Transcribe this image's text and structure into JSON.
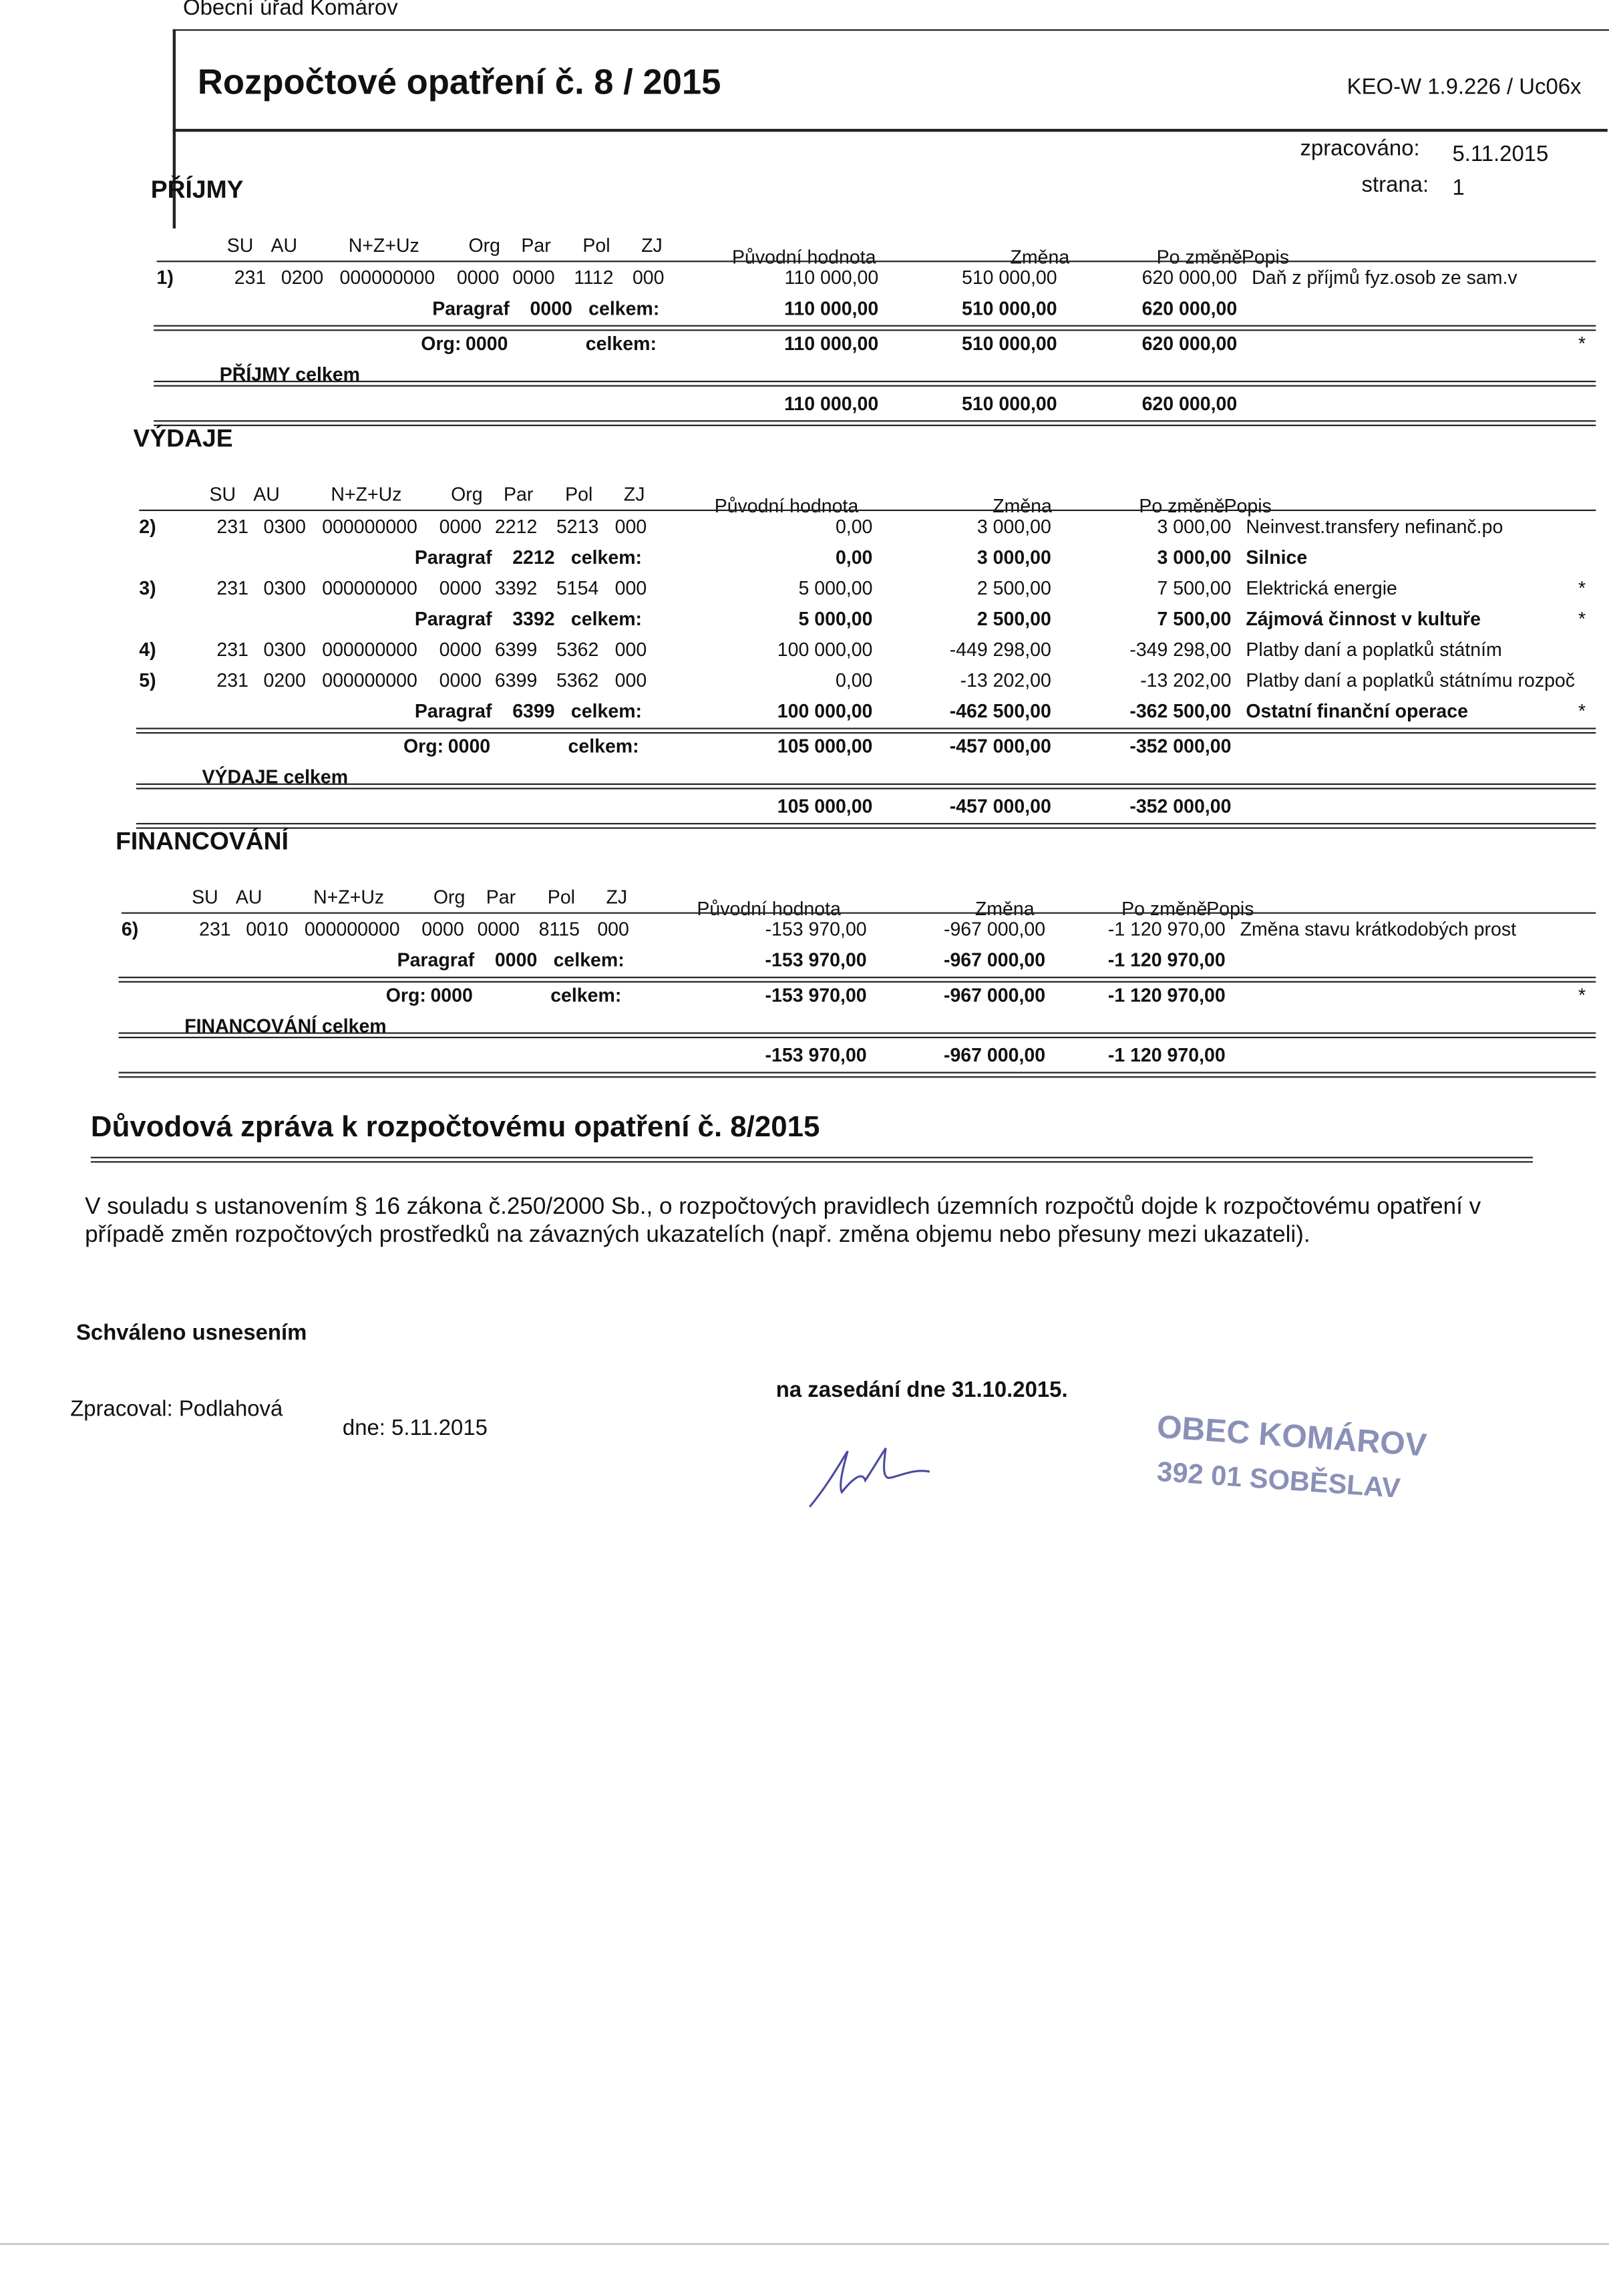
{
  "header": {
    "office": "Obecní úřad Komárov",
    "title": "Rozpočtové opatření č. 8 / 2015",
    "version": "KEO-W 1.9.226 / Uc06x",
    "processed_label": "zpracováno:",
    "processed_date": "5.11.2015",
    "page_label": "strana:",
    "page": "1"
  },
  "sections": [
    {
      "title": "PŘÍJMY",
      "columns": [
        "SU",
        "AU",
        "N+Z+Uz",
        "Org",
        "Par",
        "Pol",
        "ZJ",
        "Původní hodnota",
        "Změna",
        "Po změně",
        "Popis"
      ],
      "lines": [
        {
          "num": "1)",
          "codes": [
            "231",
            "0200",
            "000000000",
            "0000",
            "0000",
            "1112",
            "000"
          ],
          "original": "110 000,00",
          "change": "510 000,00",
          "after": "620 000,00",
          "desc": "Daň z příjmů fyz.osob ze sam.v"
        },
        {
          "label": "Paragraf",
          "code": "0000",
          "suffix": "celkem:",
          "original": "110 000,00",
          "change": "510 000,00",
          "after": "620 000,00"
        },
        {
          "org_label": "Org:",
          "code": "0000",
          "suffix": "celkem:",
          "original": "110 000,00",
          "change": "510 000,00",
          "after": "620 000,00",
          "mark": "*"
        },
        {
          "total_label": "PŘÍJMY celkem",
          "original": "110 000,00",
          "change": "510 000,00",
          "after": "620 000,00"
        }
      ]
    },
    {
      "title": "VÝDAJE",
      "columns": [
        "SU",
        "AU",
        "N+Z+Uz",
        "Org",
        "Par",
        "Pol",
        "ZJ",
        "Původní hodnota",
        "Změna",
        "Po změně",
        "Popis"
      ],
      "lines": [
        {
          "num": "2)",
          "codes": [
            "231",
            "0300",
            "000000000",
            "0000",
            "2212",
            "5213",
            "000"
          ],
          "original": "0,00",
          "change": "3 000,00",
          "after": "3 000,00",
          "desc": "Neinvest.transfery nefinanč.po"
        },
        {
          "label": "Paragraf",
          "code": "2212",
          "suffix": "celkem:",
          "original": "0,00",
          "change": "3 000,00",
          "after": "3 000,00",
          "desc": "Silnice"
        },
        {
          "num": "3)",
          "codes": [
            "231",
            "0300",
            "000000000",
            "0000",
            "3392",
            "5154",
            "000"
          ],
          "original": "5 000,00",
          "change": "2 500,00",
          "after": "7 500,00",
          "desc": "Elektrická energie",
          "mark": "*"
        },
        {
          "label": "Paragraf",
          "code": "3392",
          "suffix": "celkem:",
          "original": "5 000,00",
          "change": "2 500,00",
          "after": "7 500,00",
          "desc": "Zájmová činnost v kultuře",
          "mark": "*"
        },
        {
          "num": "4)",
          "codes": [
            "231",
            "0300",
            "000000000",
            "0000",
            "6399",
            "5362",
            "000"
          ],
          "original": "100 000,00",
          "change": "-449 298,00",
          "after": "-349 298,00",
          "desc": "Platby daní a poplatků státním"
        },
        {
          "num": "5)",
          "codes": [
            "231",
            "0200",
            "000000000",
            "0000",
            "6399",
            "5362",
            "000"
          ],
          "original": "0,00",
          "change": "-13 202,00",
          "after": "-13 202,00",
          "desc": "Platby daní a poplatků státnímu rozpoč"
        },
        {
          "label": "Paragraf",
          "code": "6399",
          "suffix": "celkem:",
          "original": "100 000,00",
          "change": "-462 500,00",
          "after": "-362 500,00",
          "desc": "Ostatní finanční operace",
          "mark": "*"
        },
        {
          "org_label": "Org:",
          "code": "0000",
          "suffix": "celkem:",
          "original": "105 000,00",
          "change": "-457 000,00",
          "after": "-352 000,00"
        },
        {
          "total_label": "VÝDAJE celkem",
          "original": "105 000,00",
          "change": "-457 000,00",
          "after": "-352 000,00"
        }
      ]
    },
    {
      "title": "FINANCOVÁNÍ",
      "columns": [
        "SU",
        "AU",
        "N+Z+Uz",
        "Org",
        "Par",
        "Pol",
        "ZJ",
        "Původní hodnota",
        "Změna",
        "Po změně",
        "Popis"
      ],
      "lines": [
        {
          "num": "6)",
          "codes": [
            "231",
            "0010",
            "000000000",
            "0000",
            "0000",
            "8115",
            "000"
          ],
          "original": "-153 970,00",
          "change": "-967 000,00",
          "after": "-1 120 970,00",
          "desc": "Změna stavu krátkodobých prost"
        },
        {
          "label": "Paragraf",
          "code": "0000",
          "suffix": "celkem:",
          "original": "-153 970,00",
          "change": "-967 000,00",
          "after": "-1 120 970,00"
        },
        {
          "org_label": "Org:",
          "code": "0000",
          "suffix": "celkem:",
          "original": "-153 970,00",
          "change": "-967 000,00",
          "after": "-1 120 970,00",
          "mark": "*"
        },
        {
          "total_label": "FINANCOVÁNÍ celkem",
          "original": "-153 970,00",
          "change": "-967 000,00",
          "after": "-1 120 970,00"
        }
      ]
    }
  ],
  "report": {
    "title": "Důvodová zpráva k rozpočtovému opatření č. 8/2015",
    "body": "V souladu s ustanovením § 16 zákona č.250/2000 Sb., o rozpočtových pravidlech územních rozpočtů dojde k rozpočtovému opatření v případě změn rozpočtových prostředků na závazných ukazatelích (např. změna objemu nebo přesuny mezi ukazateli).",
    "approved": "Schváleno usnesením",
    "meeting": "na zasedání dne 31.10.2015.",
    "prepared_by": "Zpracoval: Podlahová",
    "prepared_date": "dne: 5.11.2015"
  },
  "stamp": {
    "line1": "OBEC KOMÁROV",
    "line2": "392 01 SOBĚSLAV"
  }
}
